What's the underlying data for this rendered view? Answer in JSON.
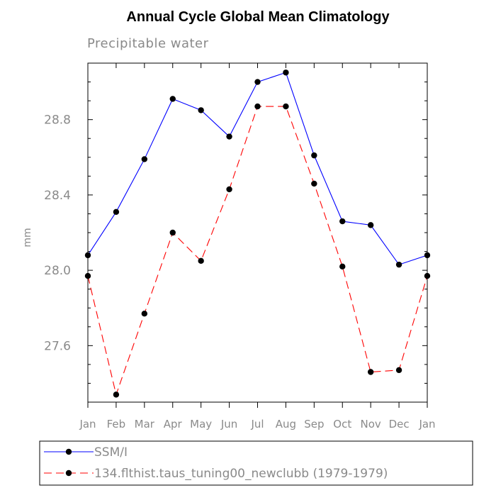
{
  "chart_data": {
    "type": "line",
    "title": "Annual Cycle Global Mean Climatology",
    "subtitle": "Precipitable water",
    "xlabel": "",
    "ylabel": "mm",
    "categories": [
      "Jan",
      "Feb",
      "Mar",
      "Apr",
      "May",
      "Jun",
      "Jul",
      "Aug",
      "Sep",
      "Oct",
      "Nov",
      "Dec",
      "Jan"
    ],
    "ylim": [
      27.3,
      29.1
    ],
    "yticks": [
      "27.6",
      "28.0",
      "28.4",
      "28.8"
    ],
    "legend_position": "bottom",
    "series": [
      {
        "name": "SSM/I",
        "color": "#0000ff",
        "dash": "solid",
        "values": [
          28.08,
          28.31,
          28.59,
          28.91,
          28.85,
          28.71,
          29.0,
          29.05,
          28.61,
          28.26,
          28.24,
          28.03,
          28.08
        ]
      },
      {
        "name": "134.flthist.taus_tuning00_newclubb (1979-1979)",
        "color": "#ff0000",
        "dash": "dashed",
        "values": [
          27.97,
          27.34,
          27.77,
          28.2,
          28.05,
          28.43,
          28.87,
          28.87,
          28.46,
          28.02,
          27.46,
          27.47,
          27.97
        ]
      }
    ]
  }
}
